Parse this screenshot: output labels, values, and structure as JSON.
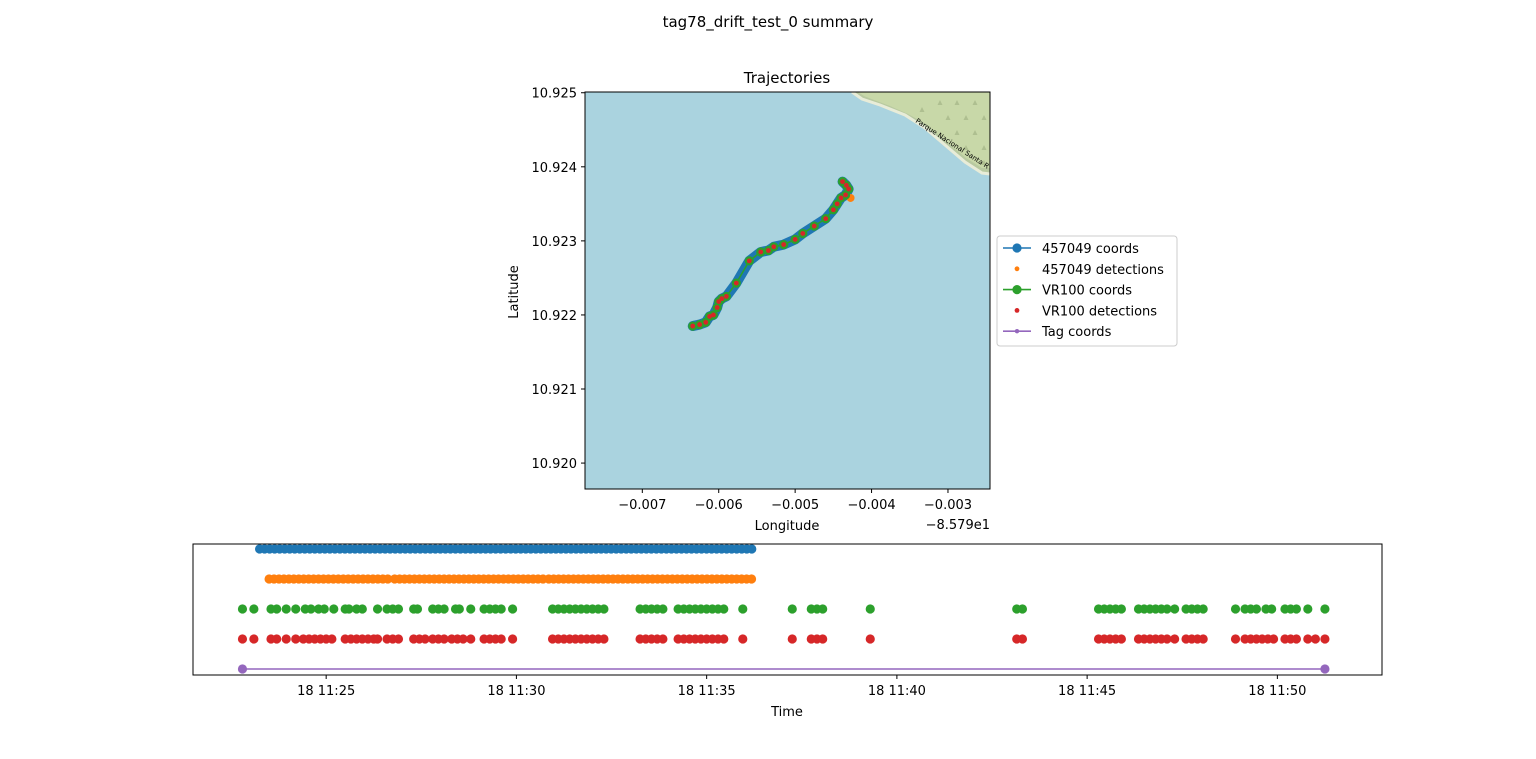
{
  "figure": {
    "title": "tag78_drift_test_0 summary"
  },
  "chart_data": [
    {
      "type": "line",
      "title": "Trajectories",
      "xlabel": "Longitude",
      "ylabel": "Latitude",
      "x_offset_label": "−8.579e1",
      "xlim": [
        -0.00775,
        -0.00245
      ],
      "ylim": [
        10.91965,
        10.92501
      ],
      "xticks": [
        -0.007,
        -0.006,
        -0.005,
        -0.004,
        -0.003
      ],
      "xtick_labels": [
        "−0.007",
        "−0.006",
        "−0.005",
        "−0.004",
        "−0.003"
      ],
      "yticks": [
        10.92,
        10.921,
        10.922,
        10.923,
        10.924,
        10.925
      ],
      "ytick_labels": [
        "10.920",
        "10.921",
        "10.922",
        "10.923",
        "10.924",
        "10.925"
      ],
      "background": {
        "water_color": "#aad3df",
        "land_color": "#c8d8a8",
        "park_label": "Parque Nacional Santa R"
      },
      "legend": {
        "placement": "outside-right",
        "entries": [
          {
            "label": "457049 coords",
            "color": "#1f77b4",
            "marker": "line-dot"
          },
          {
            "label": "457049 detections",
            "color": "#ff7f0e",
            "marker": "dot"
          },
          {
            "label": "VR100 coords",
            "color": "#2ca02c",
            "marker": "line-dot"
          },
          {
            "label": "VR100 detections",
            "color": "#d62728",
            "marker": "dot"
          },
          {
            "label": "Tag coords",
            "color": "#9467bd",
            "marker": "line-small-dot"
          }
        ]
      },
      "path": {
        "x": [
          -0.00634,
          -0.00625,
          -0.00617,
          -0.00612,
          -0.00607,
          -0.00602,
          -0.006,
          -0.00596,
          -0.0059,
          -0.00577,
          -0.0056,
          -0.00545,
          -0.00535,
          -0.00528,
          -0.00515,
          -0.005,
          -0.0049,
          -0.00475,
          -0.0046,
          -0.0045,
          -0.00445,
          -0.0044,
          -0.00434,
          -0.0043,
          -0.00433,
          -0.00438
        ],
        "y": [
          10.92185,
          10.92187,
          10.9219,
          10.92198,
          10.922,
          10.9221,
          10.92218,
          10.92222,
          10.92225,
          10.92243,
          10.92273,
          10.92285,
          10.92287,
          10.92292,
          10.92295,
          10.92302,
          10.9231,
          10.9232,
          10.9233,
          10.92342,
          10.9235,
          10.92358,
          10.92362,
          10.9237,
          10.92375,
          10.9238
        ]
      }
    },
    {
      "type": "scatter",
      "xlabel": "Time",
      "x_domain": [
        "2024-01-18 11:21:30",
        "2024-01-18 11:52:45"
      ],
      "xticks": [
        "11:25",
        "11:30",
        "11:35",
        "11:40",
        "11:45",
        "11:50"
      ],
      "xtick_labels": [
        "18 11:25",
        "18 11:30",
        "18 11:35",
        "18 11:40",
        "18 11:45",
        "18 11:50"
      ],
      "rows": [
        {
          "series": "457049 coords",
          "color": "#1f77b4",
          "t_minutes": [
            [
              23.25,
              36.25,
              0.132
            ]
          ]
        },
        {
          "series": "457049 detections",
          "color": "#ff7f0e",
          "t_minutes": [
            [
              23.5,
              26.65,
              0.13
            ],
            [
              26.8,
              30.7,
              0.13
            ],
            [
              30.85,
              36.25,
              0.13
            ]
          ]
        },
        {
          "series": "VR100 coords",
          "color": "#2ca02c",
          "t_minutes": [
            22.8,
            23.1,
            23.55,
            23.7,
            23.95,
            24.2,
            24.45,
            24.6,
            24.8,
            24.95,
            25.2,
            25.5,
            25.6,
            25.8,
            25.95,
            26.35,
            26.6,
            26.75,
            26.9,
            27.3,
            27.4,
            27.8,
            27.95,
            28.1,
            28.4,
            28.5,
            28.8,
            29.15,
            29.3,
            29.45,
            29.6,
            29.9,
            30.95,
            31.1,
            31.25,
            31.4,
            31.55,
            31.7,
            31.85,
            32.0,
            32.15,
            32.3,
            33.25,
            33.4,
            33.55,
            33.7,
            33.85,
            34.25,
            34.4,
            34.55,
            34.7,
            34.85,
            35.0,
            35.15,
            35.3,
            35.45,
            35.95,
            37.25,
            37.75,
            37.9,
            38.05,
            39.3,
            43.15,
            43.3,
            45.3,
            45.45,
            45.6,
            45.75,
            45.9,
            46.35,
            46.5,
            46.65,
            46.8,
            46.95,
            47.1,
            47.3,
            47.6,
            47.75,
            47.9,
            48.05,
            48.9,
            49.15,
            49.3,
            49.45,
            49.7,
            49.85,
            50.2,
            50.35,
            50.5,
            50.8,
            51.25
          ]
        },
        {
          "series": "VR100 detections",
          "color": "#d62728",
          "t_minutes": [
            22.8,
            23.1,
            23.55,
            23.7,
            23.95,
            24.2,
            24.4,
            24.55,
            24.7,
            24.85,
            25.0,
            25.15,
            25.5,
            25.65,
            25.8,
            25.95,
            26.1,
            26.25,
            26.35,
            26.6,
            26.75,
            26.9,
            27.3,
            27.45,
            27.6,
            27.8,
            27.95,
            28.1,
            28.3,
            28.45,
            28.6,
            28.8,
            29.15,
            29.3,
            29.45,
            29.6,
            29.9,
            30.95,
            31.1,
            31.25,
            31.4,
            31.55,
            31.7,
            31.85,
            32.0,
            32.15,
            32.3,
            33.25,
            33.4,
            33.55,
            33.7,
            33.85,
            34.25,
            34.4,
            34.55,
            34.7,
            34.85,
            35.0,
            35.15,
            35.3,
            35.45,
            35.95,
            37.25,
            37.75,
            37.9,
            38.05,
            39.3,
            43.15,
            43.3,
            45.3,
            45.45,
            45.6,
            45.75,
            45.9,
            46.35,
            46.5,
            46.65,
            46.8,
            46.95,
            47.1,
            47.3,
            47.6,
            47.75,
            47.9,
            48.05,
            48.9,
            49.15,
            49.3,
            49.45,
            49.6,
            49.75,
            49.9,
            50.2,
            50.35,
            50.5,
            50.8,
            51.0,
            51.25
          ]
        },
        {
          "series": "Tag coords",
          "color": "#9467bd",
          "t_minutes": [
            22.8,
            51.25
          ],
          "line": true
        }
      ]
    }
  ]
}
